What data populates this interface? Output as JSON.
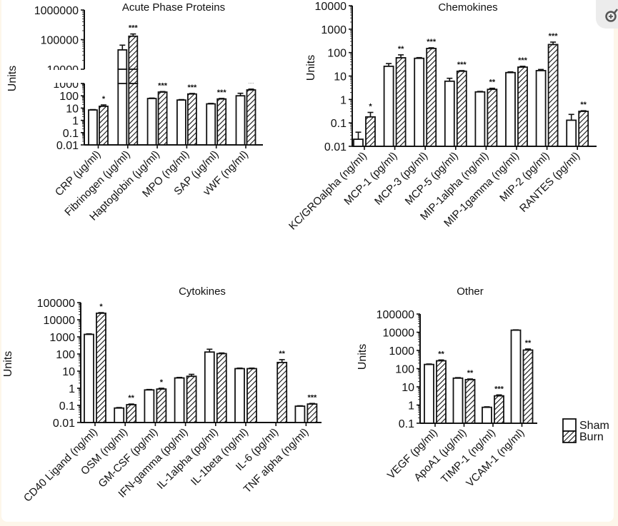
{
  "legend": {
    "items": [
      {
        "name": "Sham",
        "pattern": "open"
      },
      {
        "name": "Burn",
        "pattern": "hatched"
      }
    ]
  },
  "colors": {
    "ink": "#111111",
    "background": "#ffffff",
    "page": "#fdf6ea",
    "zoom_button": "#ececec"
  },
  "zoom_button": {
    "icon": "zoom-in-icon"
  },
  "chart_data": [
    {
      "type": "bar",
      "title": "Acute Phase Proteins",
      "ylabel": "Units",
      "yscale": "log",
      "broken_axis": true,
      "ylim_lower": [
        0.01,
        1000
      ],
      "ylim_upper": [
        10000,
        1000000
      ],
      "ytick_labels_lower": [
        "0.01",
        "0.1",
        "1",
        "10",
        "100",
        "1000"
      ],
      "ytick_labels_upper": [
        "10000",
        "100000",
        "1000000"
      ],
      "categories": [
        "CRP (µg/ml)",
        "Fibrinogen (µg/ml)",
        "Haptoglobin (µg/ml)",
        "MPO (ng/ml)",
        "SAP (µg/ml)",
        "vWF (ng/ml)"
      ],
      "series": [
        {
          "name": "Sham",
          "values": [
            7,
            45000,
            60,
            45,
            22,
            100
          ],
          "errors": [
            0.5,
            20000,
            5,
            4,
            2,
            60
          ]
        },
        {
          "name": "Burn",
          "values": [
            14,
            130000,
            200,
            140,
            55,
            300
          ],
          "errors": [
            4,
            25000,
            20,
            15,
            6,
            50
          ]
        }
      ],
      "significance": [
        "*",
        "***",
        "***",
        "***",
        "***",
        "**"
      ]
    },
    {
      "type": "bar",
      "title": "Chemokines",
      "ylabel": "Units",
      "yscale": "log",
      "ylim": [
        0.01,
        10000
      ],
      "ytick_labels": [
        "0.01",
        "0.1",
        "1",
        "10",
        "100",
        "1000",
        "10000"
      ],
      "categories": [
        "KC/GROalpha (ng/ml)",
        "MCP-1 (pg/ml)",
        "MCP-3 (pg/ml)",
        "MCP-5 (pg/ml)",
        "MIP-1alpha (ng/ml)",
        "MIP-1gamma (ng/ml)",
        "MIP-2 (pg/ml)",
        "RANTES (pg/ml)"
      ],
      "series": [
        {
          "name": "Sham",
          "values": [
            0.02,
            26,
            57,
            6,
            2.1,
            14,
            17,
            0.13
          ],
          "errors": [
            0.02,
            8,
            4,
            2,
            0.1,
            1,
            2,
            0.1
          ]
        },
        {
          "name": "Burn",
          "values": [
            0.18,
            60,
            150,
            16,
            2.7,
            24,
            220,
            0.31
          ],
          "errors": [
            0.1,
            20,
            10,
            1,
            0.3,
            2,
            60,
            0.02
          ]
        }
      ],
      "significance": [
        "*",
        "**",
        "***",
        "***",
        "**",
        "***",
        "***",
        "**"
      ]
    },
    {
      "type": "bar",
      "title": "Cytokines",
      "ylabel": "Units",
      "yscale": "log",
      "ylim": [
        0.01,
        100000
      ],
      "ytick_labels": [
        "0.01",
        "0.1",
        "1",
        "10",
        "100",
        "1000",
        "10000",
        "100000"
      ],
      "categories": [
        "CD40 Ligand (ng/ml)",
        "OSM (ng/ml)",
        "GM-CSF (pg/ml)",
        "IFN-gamma (pg/ml)",
        "IL-1alpha (pg/ml)",
        "IL-1beta (ng/ml)",
        "IL-6 (pg/ml)",
        "TNF alpha (ng/ml)"
      ],
      "series": [
        {
          "name": "Sham",
          "values": [
            1400,
            0.07,
            0.8,
            4,
            130,
            14,
            null,
            0.09
          ],
          "errors": [
            100,
            0.005,
            0.05,
            0.3,
            60,
            1,
            null,
            0.005
          ]
        },
        {
          "name": "Burn",
          "values": [
            24000,
            0.11,
            0.9,
            5,
            105,
            14,
            32,
            0.12
          ],
          "errors": [
            2000,
            0.01,
            0.1,
            1.5,
            10,
            1,
            15,
            0.01
          ]
        }
      ],
      "significance": [
        "*",
        "**",
        "*",
        "",
        "",
        "",
        "**",
        "***"
      ]
    },
    {
      "type": "bar",
      "title": "Other",
      "ylabel": "Units",
      "yscale": "log",
      "ylim": [
        0.1,
        100000
      ],
      "ytick_labels": [
        "0.1",
        "1",
        "10",
        "100",
        "1000",
        "10000",
        "100000"
      ],
      "categories": [
        "VEGF (pg/ml)",
        "ApoA1 (µg/ml)",
        "TIMP-1 (ng/ml)",
        "VCAM-1 (ng/ml)"
      ],
      "series": [
        {
          "name": "Sham",
          "values": [
            170,
            30,
            0.75,
            13000
          ],
          "errors": [
            10,
            2,
            0.05,
            500
          ]
        },
        {
          "name": "Burn",
          "values": [
            270,
            25,
            3.2,
            1050
          ],
          "errors": [
            30,
            2,
            0.4,
            150
          ]
        }
      ],
      "significance": [
        "**",
        "**",
        "***",
        "**"
      ]
    }
  ]
}
